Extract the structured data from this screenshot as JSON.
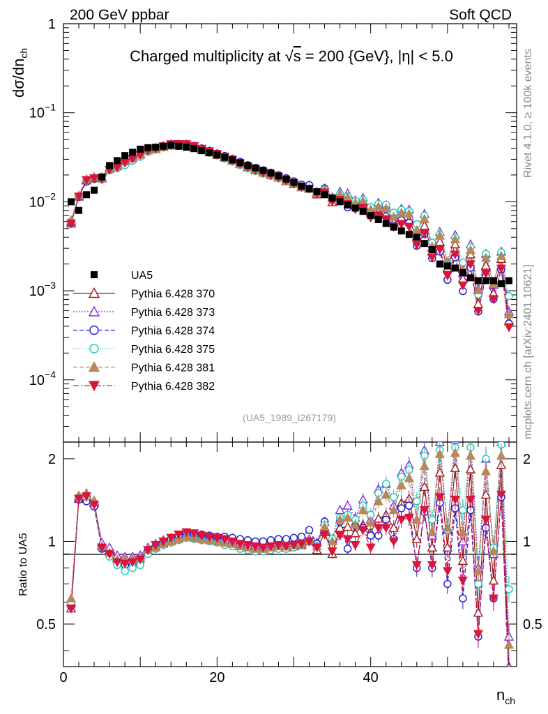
{
  "header": {
    "left": "200 GeV ppbar",
    "right": "Soft QCD"
  },
  "side_labels": {
    "rivet": "Rivet 4.1.0, ≥ 100k events",
    "mcplots": "mcplots.cern.ch [arXiv:2401.10621]"
  },
  "chart_data": {
    "type": "scatter",
    "title_prefix": "Charged multiplicity at ",
    "title_sqrt": "s",
    "title_suffix": " = 200 {GeV}, |η| < 5.0",
    "analysis_id": "(UA5_1989_I267179)",
    "ylabel": "dσ/dn",
    "ylabel_sub": "ch",
    "xlabel": "n",
    "xlabel_sub": "ch",
    "ratio_ylabel": "Ratio to UA5",
    "xlim": [
      0,
      59
    ],
    "ylim_main": [
      2e-05,
      1
    ],
    "ylim_ratio": [
      0.35,
      2.3
    ],
    "main_y_ticks": [
      {
        "base": "1",
        "exp": ""
      },
      {
        "base": "10",
        "exp": "−1"
      },
      {
        "base": "10",
        "exp": "−2"
      },
      {
        "base": "10",
        "exp": "−3"
      },
      {
        "base": "10",
        "exp": "−4"
      }
    ],
    "ratio_y_ticks": [
      "2",
      "1",
      "0.5"
    ],
    "x_ticks": [
      "0",
      "20",
      "40"
    ],
    "reference": {
      "name": "UA5",
      "x": [
        1,
        2,
        3,
        4,
        5,
        6,
        7,
        8,
        9,
        10,
        11,
        12,
        13,
        14,
        15,
        16,
        17,
        18,
        19,
        20,
        21,
        22,
        23,
        24,
        25,
        26,
        27,
        28,
        29,
        30,
        31,
        32,
        33,
        34,
        35,
        36,
        37,
        38,
        39,
        40,
        41,
        42,
        43,
        44,
        45,
        46,
        47,
        48,
        49,
        50,
        51,
        52,
        53,
        54,
        55,
        56,
        57,
        58
      ],
      "y": [
        0.01,
        0.008,
        0.012,
        0.0135,
        0.019,
        0.0255,
        0.029,
        0.033,
        0.036,
        0.039,
        0.0405,
        0.041,
        0.042,
        0.043,
        0.042,
        0.041,
        0.0395,
        0.0375,
        0.0355,
        0.0335,
        0.0315,
        0.0295,
        0.0275,
        0.0255,
        0.024,
        0.0225,
        0.021,
        0.0195,
        0.018,
        0.0165,
        0.015,
        0.014,
        0.013,
        0.012,
        0.011,
        0.01,
        0.0092,
        0.0085,
        0.0078,
        0.007,
        0.0063,
        0.0057,
        0.0052,
        0.0047,
        0.0043,
        0.004,
        0.0034,
        0.0029,
        0.002,
        0.0019,
        0.0018,
        0.0016,
        0.0014,
        0.0013,
        0.0013,
        0.0013,
        0.0012,
        0.0013
      ]
    },
    "series": [
      {
        "name": "Pythia 6.428 370",
        "color": "#9b1b1b",
        "marker": "triangle-up-open",
        "dash": "",
        "ratio": [
          0.57,
          1.43,
          1.45,
          1.38,
          0.97,
          0.93,
          0.87,
          0.86,
          0.86,
          0.87,
          0.93,
          0.96,
          0.99,
          1.01,
          1.03,
          1.05,
          1.04,
          1.03,
          1.02,
          1.01,
          1.0,
          0.99,
          0.97,
          0.96,
          0.95,
          0.94,
          0.95,
          0.96,
          0.95,
          0.96,
          0.97,
          1.0,
          0.93,
          1.08,
          0.9,
          1.12,
          1.13,
          1.07,
          1.15,
          1.08,
          1.21,
          1.25,
          1.12,
          1.38,
          1.43,
          1.02,
          1.58,
          0.95,
          1.78,
          0.95,
          1.85,
          0.85,
          1.83,
          0.55,
          1.48,
          0.72,
          1.9,
          0.35
        ]
      },
      {
        "name": "Pythia 6.428 373",
        "color": "#8a2be2",
        "marker": "triangle-up-open",
        "dash": "2,2",
        "ratio": [
          0.6,
          1.45,
          1.48,
          1.4,
          0.99,
          0.95,
          0.89,
          0.88,
          0.88,
          0.89,
          0.95,
          0.98,
          1.01,
          1.03,
          1.05,
          1.07,
          1.06,
          1.05,
          1.04,
          1.03,
          1.02,
          1.01,
          0.99,
          0.98,
          0.97,
          0.96,
          0.97,
          0.98,
          0.97,
          0.98,
          0.99,
          1.02,
          0.99,
          1.18,
          1.02,
          1.3,
          1.35,
          1.22,
          1.42,
          1.2,
          1.55,
          1.62,
          1.35,
          1.78,
          1.9,
          1.2,
          2.15,
          1.05,
          2.3,
          1.1,
          2.35,
          1.0,
          2.38,
          0.8,
          2.0,
          0.9,
          2.3,
          0.45
        ]
      },
      {
        "name": "Pythia 6.428 374",
        "color": "#2222cc",
        "marker": "circle-open",
        "dash": "6,3",
        "ratio": [
          0.58,
          1.42,
          1.4,
          1.34,
          0.94,
          0.89,
          0.84,
          0.82,
          0.82,
          0.84,
          0.92,
          0.96,
          1.0,
          1.02,
          1.05,
          1.08,
          1.07,
          1.06,
          1.05,
          1.04,
          1.04,
          1.03,
          1.02,
          1.01,
          1.0,
          1.0,
          1.01,
          1.02,
          1.02,
          1.03,
          1.04,
          1.1,
          0.98,
          1.18,
          1.0,
          1.18,
          0.94,
          1.14,
          1.12,
          1.05,
          1.05,
          1.2,
          1.02,
          1.32,
          1.35,
          0.8,
          1.28,
          0.8,
          1.38,
          0.7,
          1.32,
          0.62,
          1.3,
          0.45,
          1.12,
          0.62,
          1.45,
          0.33
        ]
      },
      {
        "name": "Pythia 6.428 375",
        "color": "#22ccbb",
        "marker": "circle-open",
        "dash": "1,2",
        "ratio": [
          0.6,
          1.45,
          1.45,
          1.38,
          0.95,
          0.88,
          0.82,
          0.78,
          0.8,
          0.82,
          0.9,
          0.94,
          0.97,
          0.99,
          1.01,
          1.03,
          1.02,
          1.01,
          1.0,
          0.99,
          0.97,
          0.96,
          0.94,
          0.93,
          0.92,
          0.92,
          0.93,
          0.94,
          0.94,
          0.95,
          0.97,
          1.0,
          0.96,
          1.15,
          1.02,
          1.22,
          1.25,
          1.2,
          1.35,
          1.25,
          1.5,
          1.62,
          1.45,
          1.72,
          1.82,
          1.4,
          2.05,
          1.2,
          2.15,
          1.1,
          2.2,
          1.3,
          2.2,
          0.7,
          2.0,
          0.95,
          2.25,
          0.67
        ]
      },
      {
        "name": "Pythia 6.428 381",
        "color": "#b8875a",
        "marker": "triangle-up-filled",
        "dash": "6,3",
        "ratio": [
          0.62,
          1.47,
          1.5,
          1.41,
          0.96,
          0.91,
          0.86,
          0.86,
          0.86,
          0.87,
          0.93,
          0.95,
          0.98,
          1.0,
          1.02,
          1.04,
          1.03,
          1.02,
          1.01,
          1.0,
          0.99,
          0.98,
          0.96,
          0.95,
          0.94,
          0.94,
          0.95,
          0.96,
          0.96,
          0.97,
          0.98,
          1.01,
          0.96,
          1.13,
          1.0,
          1.2,
          1.22,
          1.15,
          1.3,
          1.17,
          1.4,
          1.48,
          1.3,
          1.6,
          1.7,
          1.2,
          1.88,
          1.08,
          2.08,
          1.12,
          2.1,
          1.08,
          2.05,
          0.78,
          1.8,
          0.92,
          2.05,
          0.42
        ]
      },
      {
        "name": "Pythia 6.428 382",
        "color": "#dc143c",
        "marker": "triangle-down-filled",
        "dash": "8,3,2,3",
        "ratio": [
          0.57,
          1.43,
          1.46,
          1.36,
          0.95,
          0.9,
          0.84,
          0.83,
          0.84,
          0.86,
          0.93,
          0.97,
          1.0,
          1.03,
          1.06,
          1.08,
          1.07,
          1.05,
          1.04,
          1.03,
          1.02,
          1.0,
          0.98,
          0.97,
          0.96,
          0.95,
          0.96,
          0.97,
          0.96,
          0.97,
          0.98,
          1.0,
          0.95,
          1.06,
          0.92,
          1.05,
          1.02,
          0.97,
          1.1,
          0.95,
          1.12,
          1.12,
          1.0,
          1.2,
          1.22,
          0.82,
          1.3,
          0.82,
          1.45,
          0.78,
          1.42,
          0.72,
          1.42,
          0.46,
          1.2,
          0.62,
          1.48,
          0.3
        ]
      }
    ]
  }
}
